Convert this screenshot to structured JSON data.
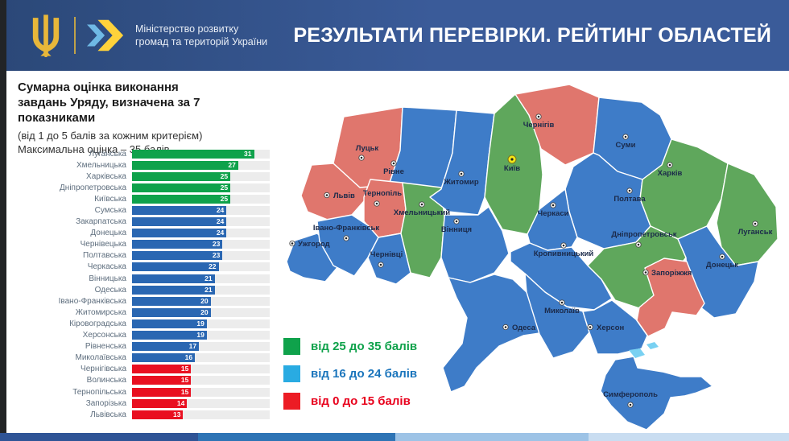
{
  "header": {
    "ministry_line1": "Міністерство розвитку",
    "ministry_line2": "громад та територій України",
    "title": "РЕЗУЛЬТАТИ ПЕРЕВІРКИ. РЕЙТИНГ ОБЛАСТЕЙ"
  },
  "panel": {
    "title_line1": "Сумарна оцінка виконання",
    "title_line2": "завдань Уряду, визначена за 7 показниками",
    "subtitle_line1": "(від 1 до 5 балів за кожним критерієм)",
    "subtitle_line2": "Максимальна оцінка – 35 балів."
  },
  "chart_data": {
    "type": "bar",
    "orientation": "horizontal",
    "title": "Сумарна оцінка виконання завдань Уряду, визначена за 7 показниками",
    "xlim": [
      0,
      35
    ],
    "max_score": 35,
    "categories": [
      "Луганська",
      "Хмельницька",
      "Харківська",
      "Дніпропетровська",
      "Київська",
      "Сумська",
      "Закарпатська",
      "Донецька",
      "Чернівецька",
      "Полтавська",
      "Черкаська",
      "Вінницька",
      "Одеська",
      "Івано-Франківська",
      "Житомирська",
      "Кіровоградська",
      "Херсонська",
      "Рівненська",
      "Миколаївська",
      "Чернігівська",
      "Волинська",
      "Тернопільська",
      "Запорізька",
      "Львівська"
    ],
    "values": [
      31,
      27,
      25,
      25,
      25,
      24,
      24,
      24,
      23,
      23,
      22,
      21,
      21,
      20,
      20,
      19,
      19,
      17,
      16,
      15,
      15,
      15,
      14,
      13
    ],
    "bands": [
      {
        "min": 25,
        "color": "#0FA24B"
      },
      {
        "min": 16,
        "color": "#2A67B2"
      },
      {
        "min": 0,
        "color": "#E90F20"
      }
    ],
    "track_color": "#ececec"
  },
  "legend": {
    "items": [
      {
        "label": "від 25 до 35 балів",
        "square_color": "#0FA24B",
        "text_color": "#0FA24B"
      },
      {
        "label": "від 16 до 24 балів",
        "square_color": "#29ABE2",
        "text_color": "#1B75BC"
      },
      {
        "label": "від 0 до 15 балів",
        "square_color": "#EC1C24",
        "text_color": "#E8001C"
      }
    ]
  },
  "map": {
    "band_colors": {
      "green": "#5FA75C",
      "blue": "#3E7CC8",
      "red": "#E0766D"
    },
    "water_color": "#79D1F2",
    "regions": [
      {
        "id": "volyn",
        "city": "Луцьк",
        "band": "red"
      },
      {
        "id": "rivne",
        "city": "Рівне",
        "band": "blue"
      },
      {
        "id": "lviv",
        "city": "Львів",
        "band": "red"
      },
      {
        "id": "ternopil",
        "city": "Тернопіль",
        "band": "red"
      },
      {
        "id": "khmelnytskyi",
        "city": "Хмельницький",
        "band": "green"
      },
      {
        "id": "zhytomyr",
        "city": "Житомир",
        "band": "blue"
      },
      {
        "id": "kyiv",
        "city": "Київ",
        "band": "green"
      },
      {
        "id": "chernihiv",
        "city": "Чернігів",
        "band": "red"
      },
      {
        "id": "sumy",
        "city": "Суми",
        "band": "blue"
      },
      {
        "id": "kharkiv",
        "city": "Харків",
        "band": "green"
      },
      {
        "id": "luhansk",
        "city": "Луганськ",
        "band": "green"
      },
      {
        "id": "poltava",
        "city": "Полтава",
        "band": "blue"
      },
      {
        "id": "cherkasy",
        "city": "Черкаси",
        "band": "blue"
      },
      {
        "id": "vinnytsia",
        "city": "Вінниця",
        "band": "blue"
      },
      {
        "id": "zakarpattia",
        "city": "Ужгород",
        "band": "blue"
      },
      {
        "id": "ivano-frankivsk",
        "city": "Івано-Франківськ",
        "band": "blue"
      },
      {
        "id": "chernivtsi",
        "city": "Чернівці",
        "band": "blue"
      },
      {
        "id": "kirovohrad",
        "city": "Кропивницький",
        "band": "blue"
      },
      {
        "id": "dnipro",
        "city": "Дніпропетровськ",
        "band": "green"
      },
      {
        "id": "donetsk",
        "city": "Донецьк",
        "band": "blue"
      },
      {
        "id": "zaporizhzhia",
        "city": "Запоріжжя",
        "band": "red"
      },
      {
        "id": "mykolaiv",
        "city": "Миколаїв",
        "band": "blue"
      },
      {
        "id": "odesa",
        "city": "Одеса",
        "band": "blue"
      },
      {
        "id": "kherson",
        "city": "Херсон",
        "band": "blue"
      },
      {
        "id": "crimea",
        "city": "Симферополь",
        "band": "blue"
      }
    ]
  },
  "footer": {
    "segment_colors": [
      "#2F5496",
      "#2E74B5",
      "#9DC3E6",
      "#C9DDF1"
    ],
    "segment_widths": [
      246,
      245,
      240,
      249
    ]
  }
}
